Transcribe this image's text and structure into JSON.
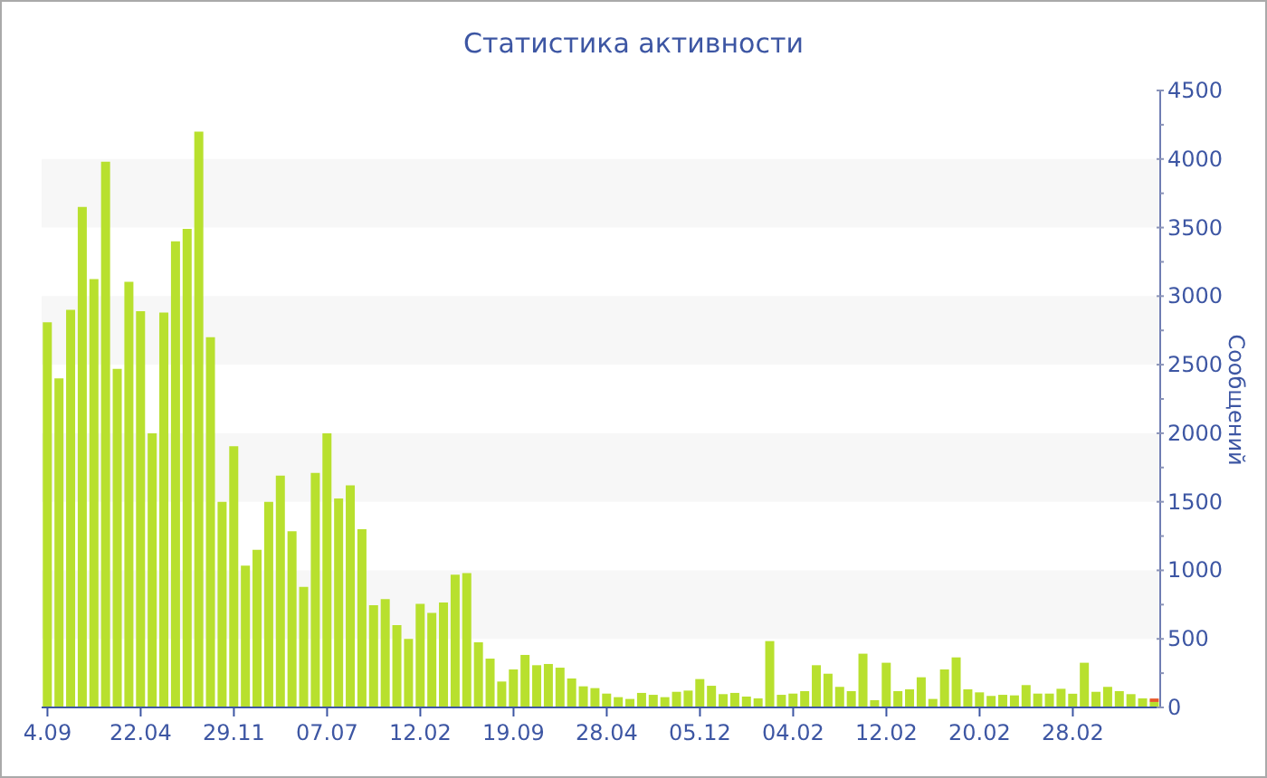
{
  "chart_data": {
    "type": "bar",
    "title": "Статистика активности",
    "ylabel": "Сообщений",
    "categories": [
      "4.09",
      null,
      null,
      null,
      null,
      null,
      null,
      null,
      "22.04",
      null,
      null,
      null,
      null,
      null,
      null,
      null,
      "29.11",
      null,
      null,
      null,
      null,
      null,
      null,
      null,
      "07.07",
      null,
      null,
      null,
      null,
      null,
      null,
      null,
      "12.02",
      null,
      null,
      null,
      null,
      null,
      null,
      null,
      "19.09",
      null,
      null,
      null,
      null,
      null,
      null,
      null,
      "28.04",
      null,
      null,
      null,
      null,
      null,
      null,
      null,
      "05.12",
      null,
      null,
      null,
      null,
      null,
      null,
      null,
      "04.02",
      null,
      null,
      null,
      null,
      null,
      null,
      null,
      "12.02",
      null,
      null,
      null,
      null,
      null,
      null,
      null,
      "20.02",
      null,
      null,
      null,
      null,
      null,
      null,
      null,
      "28.02",
      null,
      null,
      null,
      null,
      null,
      null,
      null
    ],
    "stacked": true,
    "series": [
      {
        "color": "#b8e02e",
        "values": [
          2810,
          2400,
          2900,
          3650,
          3125,
          3980,
          2470,
          3105,
          2890,
          2000,
          2880,
          3400,
          3490,
          4200,
          2700,
          1500,
          1905,
          1035,
          1150,
          1500,
          1690,
          1285,
          880,
          1710,
          2000,
          1525,
          1620,
          1300,
          745,
          790,
          600,
          500,
          755,
          690,
          765,
          968,
          980,
          475,
          356,
          189,
          277,
          383,
          308,
          317,
          290,
          211,
          154,
          141,
          101,
          75,
          62,
          106,
          92,
          75,
          114,
          123,
          207,
          158,
          97,
          106,
          79,
          66,
          484,
          92,
          101,
          119,
          308,
          246,
          150,
          119,
          392,
          53,
          326,
          119,
          132,
          220,
          62,
          277,
          365,
          132,
          110,
          84,
          92,
          88,
          163,
          101,
          101,
          136,
          100,
          326,
          114,
          150,
          119,
          97,
          66,
          40
        ]
      },
      {
        "color": "#e8582a",
        "values": [
          null,
          null,
          null,
          null,
          null,
          null,
          null,
          null,
          null,
          null,
          null,
          null,
          null,
          null,
          null,
          null,
          null,
          null,
          null,
          null,
          null,
          null,
          null,
          null,
          null,
          null,
          null,
          null,
          null,
          null,
          null,
          null,
          null,
          null,
          null,
          null,
          null,
          null,
          null,
          null,
          null,
          null,
          null,
          null,
          null,
          null,
          null,
          null,
          null,
          null,
          null,
          null,
          null,
          null,
          null,
          null,
          null,
          null,
          null,
          null,
          null,
          null,
          null,
          null,
          null,
          null,
          null,
          null,
          null,
          null,
          null,
          null,
          null,
          null,
          null,
          null,
          null,
          null,
          null,
          null,
          null,
          null,
          null,
          null,
          null,
          null,
          null,
          null,
          null,
          null,
          null,
          null,
          null,
          null,
          null,
          25
        ]
      }
    ],
    "ylim": [
      0,
      4500
    ],
    "yticks": [
      0,
      {
        "value": 250,
        "label": null
      },
      500,
      {
        "value": 750,
        "label": null
      },
      1000,
      {
        "value": 1250,
        "label": null
      },
      1500,
      {
        "value": 1750,
        "label": null
      },
      2000,
      {
        "value": 2250,
        "label": null
      },
      2500,
      {
        "value": 2750,
        "label": null
      },
      3000,
      {
        "value": 3250,
        "label": null
      },
      3500,
      {
        "value": 3750,
        "label": null
      },
      4000,
      {
        "value": 4250,
        "label": null
      },
      4500
    ],
    "bands": [
      {
        "axis": "y",
        "from": 500,
        "to": 1000,
        "color": "#f7f7f7"
      },
      {
        "axis": "y",
        "from": 1500,
        "to": 2000,
        "color": "#f7f7f7"
      },
      {
        "axis": "y",
        "from": 2500,
        "to": 3000,
        "color": "#f7f7f7"
      },
      {
        "axis": "y",
        "from": 3500,
        "to": 4000,
        "color": "#f7f7f7"
      }
    ],
    "legend": false
  }
}
